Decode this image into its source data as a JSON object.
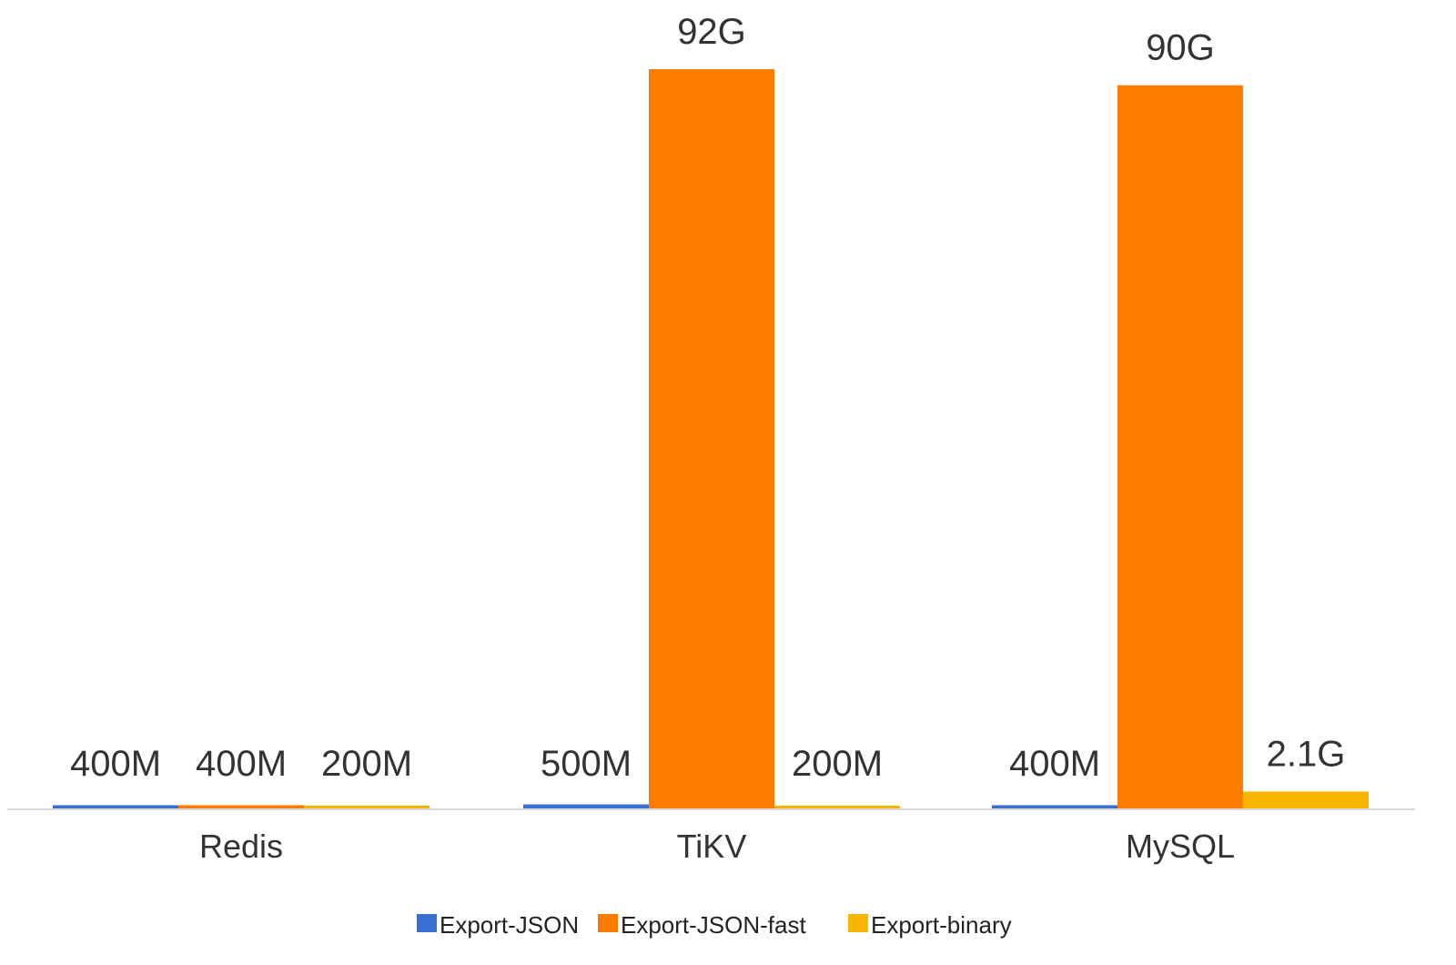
{
  "chart_data": {
    "type": "bar",
    "categories": [
      "Redis",
      "TiKV",
      "MySQL"
    ],
    "unit": "GB",
    "series": [
      {
        "name": "Export-JSON",
        "color": "#3a6fd0",
        "values": [
          0.4,
          0.5,
          0.4
        ],
        "labels": [
          "400M",
          "500M",
          "400M"
        ]
      },
      {
        "name": "Export-JSON-fast",
        "color": "#ff7c00",
        "values": [
          0.4,
          92,
          90
        ],
        "labels": [
          "400M",
          "92G",
          "90G"
        ]
      },
      {
        "name": "Export-binary",
        "color": "#f7b500",
        "values": [
          0.2,
          0.2,
          2.1
        ],
        "labels": [
          "200M",
          "200M",
          "2.1G"
        ]
      }
    ],
    "ylim": [
      0,
      100
    ],
    "grid": false,
    "legend": "bottom-center",
    "axis_color": "#d9d9d9"
  }
}
